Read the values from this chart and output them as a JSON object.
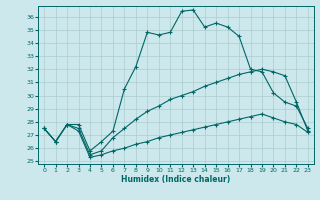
{
  "xlabel": "Humidex (Indice chaleur)",
  "bg_color": "#cce8ec",
  "grid_color": "#aacccc",
  "line_color": "#006666",
  "xlim": [
    -0.5,
    23.5
  ],
  "ylim": [
    24.8,
    36.8
  ],
  "xticks": [
    0,
    1,
    2,
    3,
    4,
    5,
    6,
    7,
    8,
    9,
    10,
    11,
    12,
    13,
    14,
    15,
    16,
    17,
    18,
    19,
    20,
    21,
    22,
    23
  ],
  "yticks": [
    25,
    26,
    27,
    28,
    29,
    30,
    31,
    32,
    33,
    34,
    35,
    36
  ],
  "line1_x": [
    0,
    1,
    2,
    3,
    4,
    5,
    6,
    7,
    8,
    9,
    10,
    11,
    12,
    13,
    14,
    15,
    16,
    17,
    18,
    19,
    20,
    21,
    22,
    23
  ],
  "line1_y": [
    27.5,
    26.5,
    27.8,
    27.8,
    25.8,
    26.5,
    27.3,
    30.5,
    32.2,
    34.8,
    34.6,
    34.8,
    36.4,
    36.5,
    35.2,
    35.5,
    35.2,
    34.5,
    32.0,
    31.8,
    30.2,
    29.5,
    29.2,
    27.5
  ],
  "line2_x": [
    0,
    1,
    2,
    3,
    4,
    5,
    6,
    7,
    8,
    9,
    10,
    11,
    12,
    13,
    14,
    15,
    16,
    17,
    18,
    19,
    20,
    21,
    22,
    23
  ],
  "line2_y": [
    27.5,
    26.5,
    27.8,
    27.5,
    25.5,
    25.8,
    26.8,
    27.5,
    28.2,
    28.8,
    29.2,
    29.7,
    30.0,
    30.3,
    30.7,
    31.0,
    31.3,
    31.6,
    31.8,
    32.0,
    31.8,
    31.5,
    29.5,
    27.3
  ],
  "line3_x": [
    0,
    1,
    2,
    3,
    4,
    5,
    6,
    7,
    8,
    9,
    10,
    11,
    12,
    13,
    14,
    15,
    16,
    17,
    18,
    19,
    20,
    21,
    22,
    23
  ],
  "line3_y": [
    27.5,
    26.5,
    27.8,
    27.3,
    25.3,
    25.5,
    25.8,
    26.0,
    26.3,
    26.5,
    26.8,
    27.0,
    27.2,
    27.4,
    27.6,
    27.8,
    28.0,
    28.2,
    28.4,
    28.6,
    28.3,
    28.0,
    27.8,
    27.2
  ]
}
